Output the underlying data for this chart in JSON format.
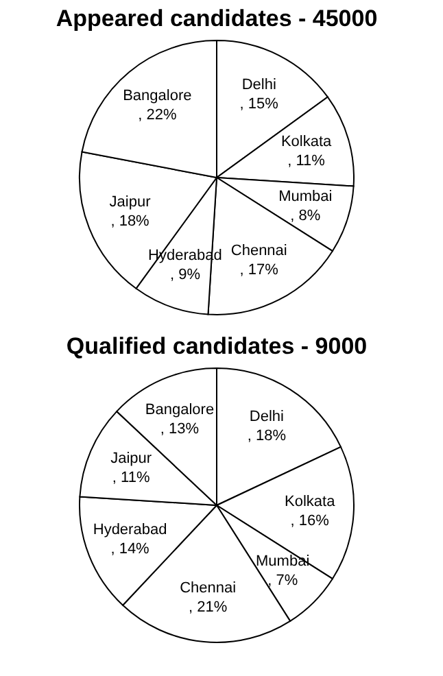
{
  "chart_data": [
    {
      "type": "pie",
      "title": "Appeared candidates - 45000",
      "categories": [
        "Delhi",
        "Kolkata",
        "Mumbai",
        "Chennai",
        "Hyderabad",
        "Jaipur",
        "Bangalore"
      ],
      "values": [
        15,
        11,
        8,
        17,
        9,
        18,
        22
      ],
      "value_labels": [
        ", 15%",
        ", 11%",
        ", 8%",
        ", 17%",
        ", 9%",
        ", 18%",
        ", 22%"
      ],
      "colors": [
        "#ffffff",
        "#ffffff",
        "#ffffff",
        "#ffffff",
        "#ffffff",
        "#ffffff",
        "#ffffff"
      ]
    },
    {
      "type": "pie",
      "title": "Qualified candidates - 9000",
      "categories": [
        "Delhi",
        "Kolkata",
        "Mumbai",
        "Chennai",
        "Hyderabad",
        "Jaipur",
        "Bangalore"
      ],
      "values": [
        18,
        16,
        7,
        21,
        14,
        11,
        13
      ],
      "value_labels": [
        ", 18%",
        ", 16%",
        ", 7%",
        ", 21%",
        ", 14%",
        ", 11%",
        ", 13%"
      ],
      "colors": [
        "#ffffff",
        "#ffffff",
        "#ffffff",
        "#ffffff",
        "#ffffff",
        "#ffffff",
        "#ffffff"
      ]
    }
  ]
}
